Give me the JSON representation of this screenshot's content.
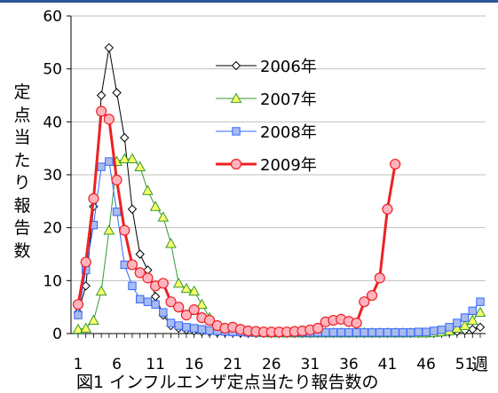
{
  "chart_data": {
    "type": "line",
    "title": "",
    "caption": "図1 インフルエンザ定点当たり報告数の",
    "xlabel_unit": "週",
    "ylabel": "定点当たり報告数",
    "ylim": [
      0,
      60
    ],
    "yticks": [
      0,
      10,
      20,
      30,
      40,
      50,
      60
    ],
    "xlim": [
      1,
      53
    ],
    "xticks": [
      1,
      6,
      11,
      16,
      21,
      26,
      31,
      36,
      41,
      46,
      51
    ],
    "grid": "horizontal",
    "legend_position": "upper-right",
    "series": [
      {
        "name": "2006年",
        "color": "#000000",
        "fill": "#ffffff",
        "marker": "diamond",
        "line_width": 1,
        "x": [
          1,
          2,
          3,
          4,
          5,
          6,
          7,
          8,
          9,
          10,
          11,
          12,
          13,
          14,
          15,
          16,
          17,
          18,
          19,
          20,
          21,
          22,
          23,
          24,
          25,
          26,
          27,
          28,
          29,
          30,
          31,
          32,
          33,
          34,
          35,
          36,
          37,
          38,
          39,
          40,
          41,
          42,
          43,
          44,
          45,
          46,
          47,
          48,
          49,
          50,
          51,
          52,
          53
        ],
        "values": [
          4,
          9,
          24,
          45,
          54,
          45.5,
          37,
          23.5,
          15,
          12,
          7,
          3.5,
          1.5,
          1,
          0.7,
          0.5,
          0.4,
          0.3,
          0.2,
          0.2,
          0.2,
          0.1,
          0.1,
          0.1,
          0.1,
          0.1,
          0.1,
          0.1,
          0.1,
          0.1,
          0.1,
          0.1,
          0.1,
          0.1,
          0.1,
          0.1,
          0.1,
          0.1,
          0.1,
          0.1,
          0.1,
          0.1,
          0.1,
          0.1,
          0.1,
          0.1,
          0.1,
          0.2,
          0.3,
          0.4,
          0.6,
          0.8,
          1.2
        ]
      },
      {
        "name": "2007年",
        "color": "#339933",
        "fill": "#ffff66",
        "marker": "triangle",
        "line_width": 1,
        "x": [
          1,
          2,
          3,
          4,
          5,
          6,
          7,
          8,
          9,
          10,
          11,
          12,
          13,
          14,
          15,
          16,
          17,
          18,
          19,
          20,
          21,
          22,
          23,
          24,
          25,
          26,
          27,
          28,
          29,
          30,
          31,
          32,
          33,
          34,
          35,
          36,
          37,
          38,
          39,
          40,
          41,
          42,
          43,
          44,
          45,
          46,
          47,
          48,
          49,
          50,
          51,
          52,
          53
        ],
        "values": [
          0.8,
          1,
          2.5,
          8,
          19.5,
          32.5,
          33,
          33,
          31.5,
          27,
          24,
          22,
          17,
          9.5,
          8.5,
          8,
          5.5,
          3,
          1.5,
          1,
          0.7,
          0.5,
          0.3,
          0.2,
          0.2,
          0.1,
          0.1,
          0.1,
          0.1,
          0.1,
          0.1,
          0.1,
          0.1,
          0.1,
          0.1,
          0.1,
          0.1,
          0.1,
          0.1,
          0.1,
          0.1,
          0.1,
          0.1,
          0.1,
          0.1,
          0.1,
          0.2,
          0.3,
          0.5,
          1,
          1.5,
          2.5,
          4
        ]
      },
      {
        "name": "2008年",
        "color": "#3366ff",
        "fill": "#aabbee",
        "marker": "square",
        "line_width": 1,
        "x": [
          1,
          2,
          3,
          4,
          5,
          6,
          7,
          8,
          9,
          10,
          11,
          12,
          13,
          14,
          15,
          16,
          17,
          18,
          19,
          20,
          21,
          22,
          23,
          24,
          25,
          26,
          27,
          28,
          29,
          30,
          31,
          32,
          33,
          34,
          35,
          36,
          37,
          38,
          39,
          40,
          41,
          42,
          43,
          44,
          45,
          46,
          47,
          48,
          49,
          50,
          51,
          52,
          53
        ],
        "values": [
          3.5,
          12,
          20.5,
          31.5,
          32.5,
          23,
          13,
          9,
          6.5,
          6,
          5.5,
          4,
          2,
          1.5,
          1.2,
          1,
          0.8,
          0.6,
          0.5,
          0.4,
          0.3,
          0.3,
          0.2,
          0.2,
          0.2,
          0.2,
          0.2,
          0.2,
          0.2,
          0.2,
          0.2,
          0.2,
          0.2,
          0.2,
          0.2,
          0.2,
          0.2,
          0.2,
          0.2,
          0.2,
          0.2,
          0.2,
          0.2,
          0.2,
          0.3,
          0.3,
          0.5,
          0.7,
          1.2,
          2,
          3,
          4.3,
          6
        ]
      },
      {
        "name": "2009年",
        "color": "#ee2222",
        "fill": "#ffb3bf",
        "marker": "circle",
        "line_width": 3,
        "x": [
          1,
          2,
          3,
          4,
          5,
          6,
          7,
          8,
          9,
          10,
          11,
          12,
          13,
          14,
          15,
          16,
          17,
          18,
          19,
          20,
          21,
          22,
          23,
          24,
          25,
          26,
          27,
          28,
          29,
          30,
          31,
          32,
          33,
          34,
          35,
          36,
          37,
          38,
          39,
          40,
          41,
          42
        ],
        "values": [
          5.5,
          13.5,
          25.5,
          42,
          40.5,
          29,
          19.5,
          13,
          11.5,
          10.5,
          9,
          9.5,
          6,
          5,
          3.5,
          4.5,
          3,
          2.5,
          1.5,
          1,
          1.2,
          0.8,
          0.5,
          0.4,
          0.3,
          0.3,
          0.3,
          0.3,
          0.4,
          0.5,
          0.7,
          1,
          2.2,
          2.5,
          2.7,
          2.3,
          2,
          6,
          7.2,
          10.5,
          23.5,
          32
        ]
      }
    ]
  }
}
